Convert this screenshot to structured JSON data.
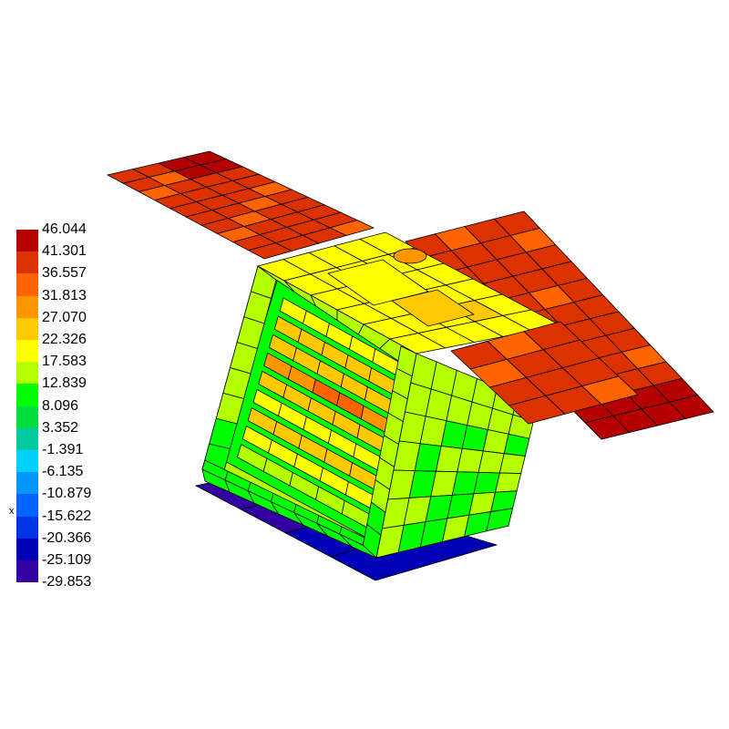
{
  "axis_label": "x",
  "legend": {
    "labels": [
      "46.044",
      "41.301",
      "36.557",
      "31.813",
      "27.070",
      "22.326",
      "17.583",
      "12.839",
      "8.096",
      "3.352",
      "-1.391",
      "-6.135",
      "-10.879",
      "-15.622",
      "-20.366",
      "-25.109",
      "-29.853"
    ],
    "colors": [
      "#b40000",
      "#dc3200",
      "#ff6400",
      "#ff9600",
      "#ffc800",
      "#ffff00",
      "#b4ff00",
      "#00ff00",
      "#00dc3c",
      "#00c8a0",
      "#00d2ff",
      "#0096ff",
      "#0064ff",
      "#0032e6",
      "#0000b4",
      "#3200a0"
    ]
  }
}
